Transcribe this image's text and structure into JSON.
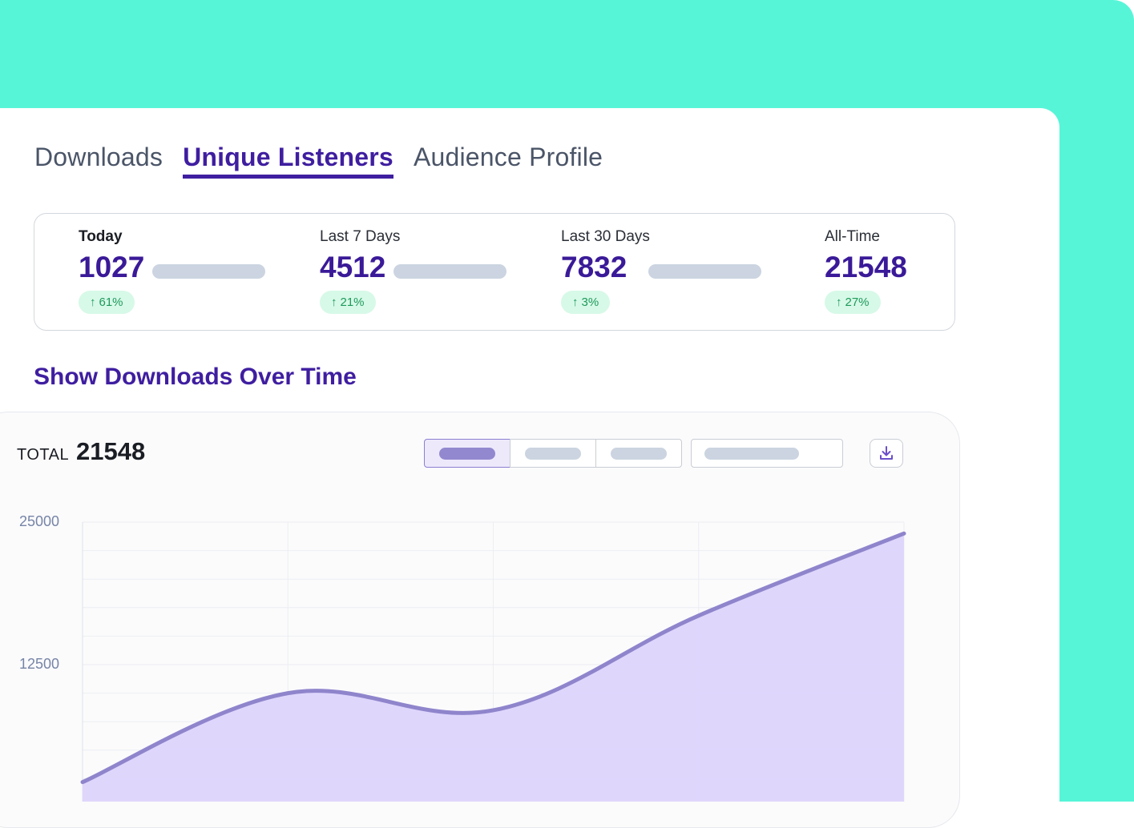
{
  "tabs": [
    {
      "label": "Downloads",
      "active": false
    },
    {
      "label": "Unique Listeners",
      "active": true
    },
    {
      "label": "Audience Profile",
      "active": false
    }
  ],
  "stats": [
    {
      "label": "Today",
      "value": "1027",
      "change": "61%"
    },
    {
      "label": "Last 7 Days",
      "value": "4512",
      "change": "21%"
    },
    {
      "label": "Last 30 Days",
      "value": "7832",
      "change": "3%"
    },
    {
      "label": "All-Time",
      "value": "21548",
      "change": "27%"
    }
  ],
  "section_title": "Show Downloads Over Time",
  "chart_header": {
    "total_label": "TOTAL",
    "total_value": "21548"
  },
  "icons": {
    "download": "download-icon",
    "arrow": "arrow-up-icon"
  },
  "colors": {
    "accent": "#3f1ea0",
    "mint": "#57f5d8",
    "line": "#8f85cc",
    "area": "#ddd4fc",
    "positive": "#1e9a5a"
  },
  "chart_data": {
    "type": "area",
    "title": "",
    "xlabel": "",
    "ylabel": "",
    "ylim": [
      0,
      25000
    ],
    "yticks": [
      25000,
      12500
    ],
    "x": [
      0,
      1,
      2,
      3,
      4
    ],
    "series": [
      {
        "name": "Downloads",
        "values": [
          2200,
          10000,
          8500,
          16800,
          24000
        ]
      }
    ],
    "grid": true
  }
}
